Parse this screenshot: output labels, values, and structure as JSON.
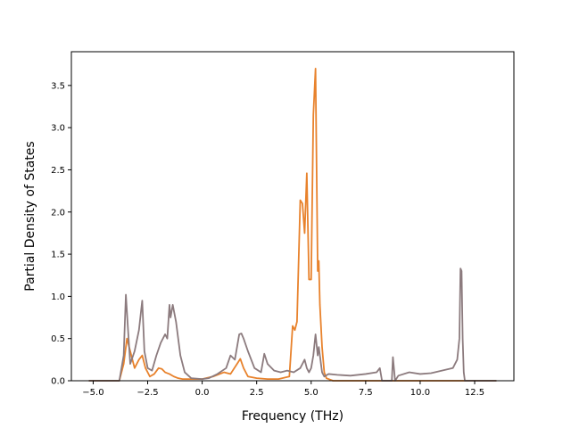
{
  "chart_data": {
    "type": "line",
    "title": "",
    "xlabel": "Frequency (THz)",
    "ylabel": "Partial Density of States",
    "xlim": [
      -6.0,
      14.3
    ],
    "ylim": [
      0,
      3.9
    ],
    "xticks": [
      -5.0,
      -2.5,
      0.0,
      2.5,
      5.0,
      7.5,
      10.0,
      12.5
    ],
    "xtick_labels": [
      "−5.0",
      "−2.5",
      "0.0",
      "2.5",
      "5.0",
      "7.5",
      "10.0",
      "12.5"
    ],
    "yticks": [
      0.0,
      0.5,
      1.0,
      1.5,
      2.0,
      2.5,
      3.0,
      3.5
    ],
    "ytick_labels": [
      "0.0",
      "0.5",
      "1.0",
      "1.5",
      "2.0",
      "2.5",
      "3.0",
      "3.5"
    ],
    "grid": false,
    "legend": "none",
    "series": [
      {
        "color": "#e8822c",
        "x": [
          -5.2,
          -3.8,
          -3.6,
          -3.45,
          -3.3,
          -3.1,
          -2.9,
          -2.75,
          -2.6,
          -2.4,
          -2.2,
          -2.0,
          -1.85,
          -1.7,
          -1.5,
          -1.3,
          -1.1,
          -0.9,
          -0.5,
          0.0,
          0.5,
          1.0,
          1.3,
          1.6,
          1.75,
          1.9,
          2.1,
          2.5,
          3.0,
          3.5,
          4.0,
          4.15,
          4.25,
          4.35,
          4.5,
          4.6,
          4.7,
          4.8,
          4.9,
          5.0,
          5.1,
          5.2,
          5.3,
          5.35,
          5.4,
          5.5,
          5.6,
          5.7,
          6.0,
          6.5,
          13.5
        ],
        "y": [
          0.0,
          0.0,
          0.2,
          0.5,
          0.35,
          0.15,
          0.25,
          0.3,
          0.15,
          0.05,
          0.08,
          0.15,
          0.14,
          0.1,
          0.08,
          0.05,
          0.03,
          0.02,
          0.02,
          0.02,
          0.05,
          0.1,
          0.08,
          0.2,
          0.26,
          0.15,
          0.05,
          0.03,
          0.02,
          0.02,
          0.05,
          0.65,
          0.6,
          0.7,
          2.14,
          2.1,
          1.75,
          2.46,
          1.2,
          1.2,
          3.15,
          3.7,
          1.3,
          1.42,
          0.9,
          0.4,
          0.1,
          0.03,
          0.0,
          0.0,
          0.0
        ]
      },
      {
        "color": "#8c7b7e",
        "x": [
          -5.2,
          -3.8,
          -3.6,
          -3.5,
          -3.4,
          -3.3,
          -3.1,
          -2.9,
          -2.75,
          -2.65,
          -2.5,
          -2.3,
          -2.1,
          -1.9,
          -1.7,
          -1.6,
          -1.5,
          -1.45,
          -1.35,
          -1.2,
          -1.0,
          -0.8,
          -0.5,
          0.0,
          0.3,
          0.7,
          1.1,
          1.3,
          1.5,
          1.7,
          1.8,
          1.9,
          2.1,
          2.4,
          2.7,
          2.85,
          3.0,
          3.3,
          3.6,
          3.9,
          4.2,
          4.5,
          4.7,
          4.8,
          4.9,
          5.0,
          5.1,
          5.2,
          5.3,
          5.35,
          5.45,
          5.5,
          5.6,
          5.8,
          6.2,
          6.8,
          7.5,
          8.0,
          8.15,
          8.25,
          8.5,
          8.7,
          8.75,
          8.85,
          9.0,
          9.5,
          10.0,
          10.5,
          11.0,
          11.5,
          11.7,
          11.8,
          11.85,
          11.9,
          11.95,
          12.0,
          12.05,
          12.2,
          13.5
        ],
        "y": [
          0.0,
          0.0,
          0.3,
          1.02,
          0.6,
          0.2,
          0.35,
          0.6,
          0.95,
          0.35,
          0.15,
          0.12,
          0.3,
          0.45,
          0.55,
          0.5,
          0.9,
          0.75,
          0.9,
          0.7,
          0.3,
          0.1,
          0.03,
          0.02,
          0.03,
          0.08,
          0.15,
          0.3,
          0.25,
          0.55,
          0.56,
          0.5,
          0.35,
          0.15,
          0.1,
          0.32,
          0.2,
          0.12,
          0.1,
          0.12,
          0.1,
          0.15,
          0.25,
          0.15,
          0.1,
          0.15,
          0.3,
          0.55,
          0.3,
          0.4,
          0.2,
          0.1,
          0.05,
          0.08,
          0.07,
          0.06,
          0.08,
          0.1,
          0.15,
          0.0,
          0.0,
          0.0,
          0.28,
          0.0,
          0.06,
          0.1,
          0.08,
          0.09,
          0.12,
          0.15,
          0.25,
          0.5,
          1.33,
          1.3,
          0.5,
          0.1,
          0.0,
          0.0,
          0.0
        ]
      }
    ]
  }
}
